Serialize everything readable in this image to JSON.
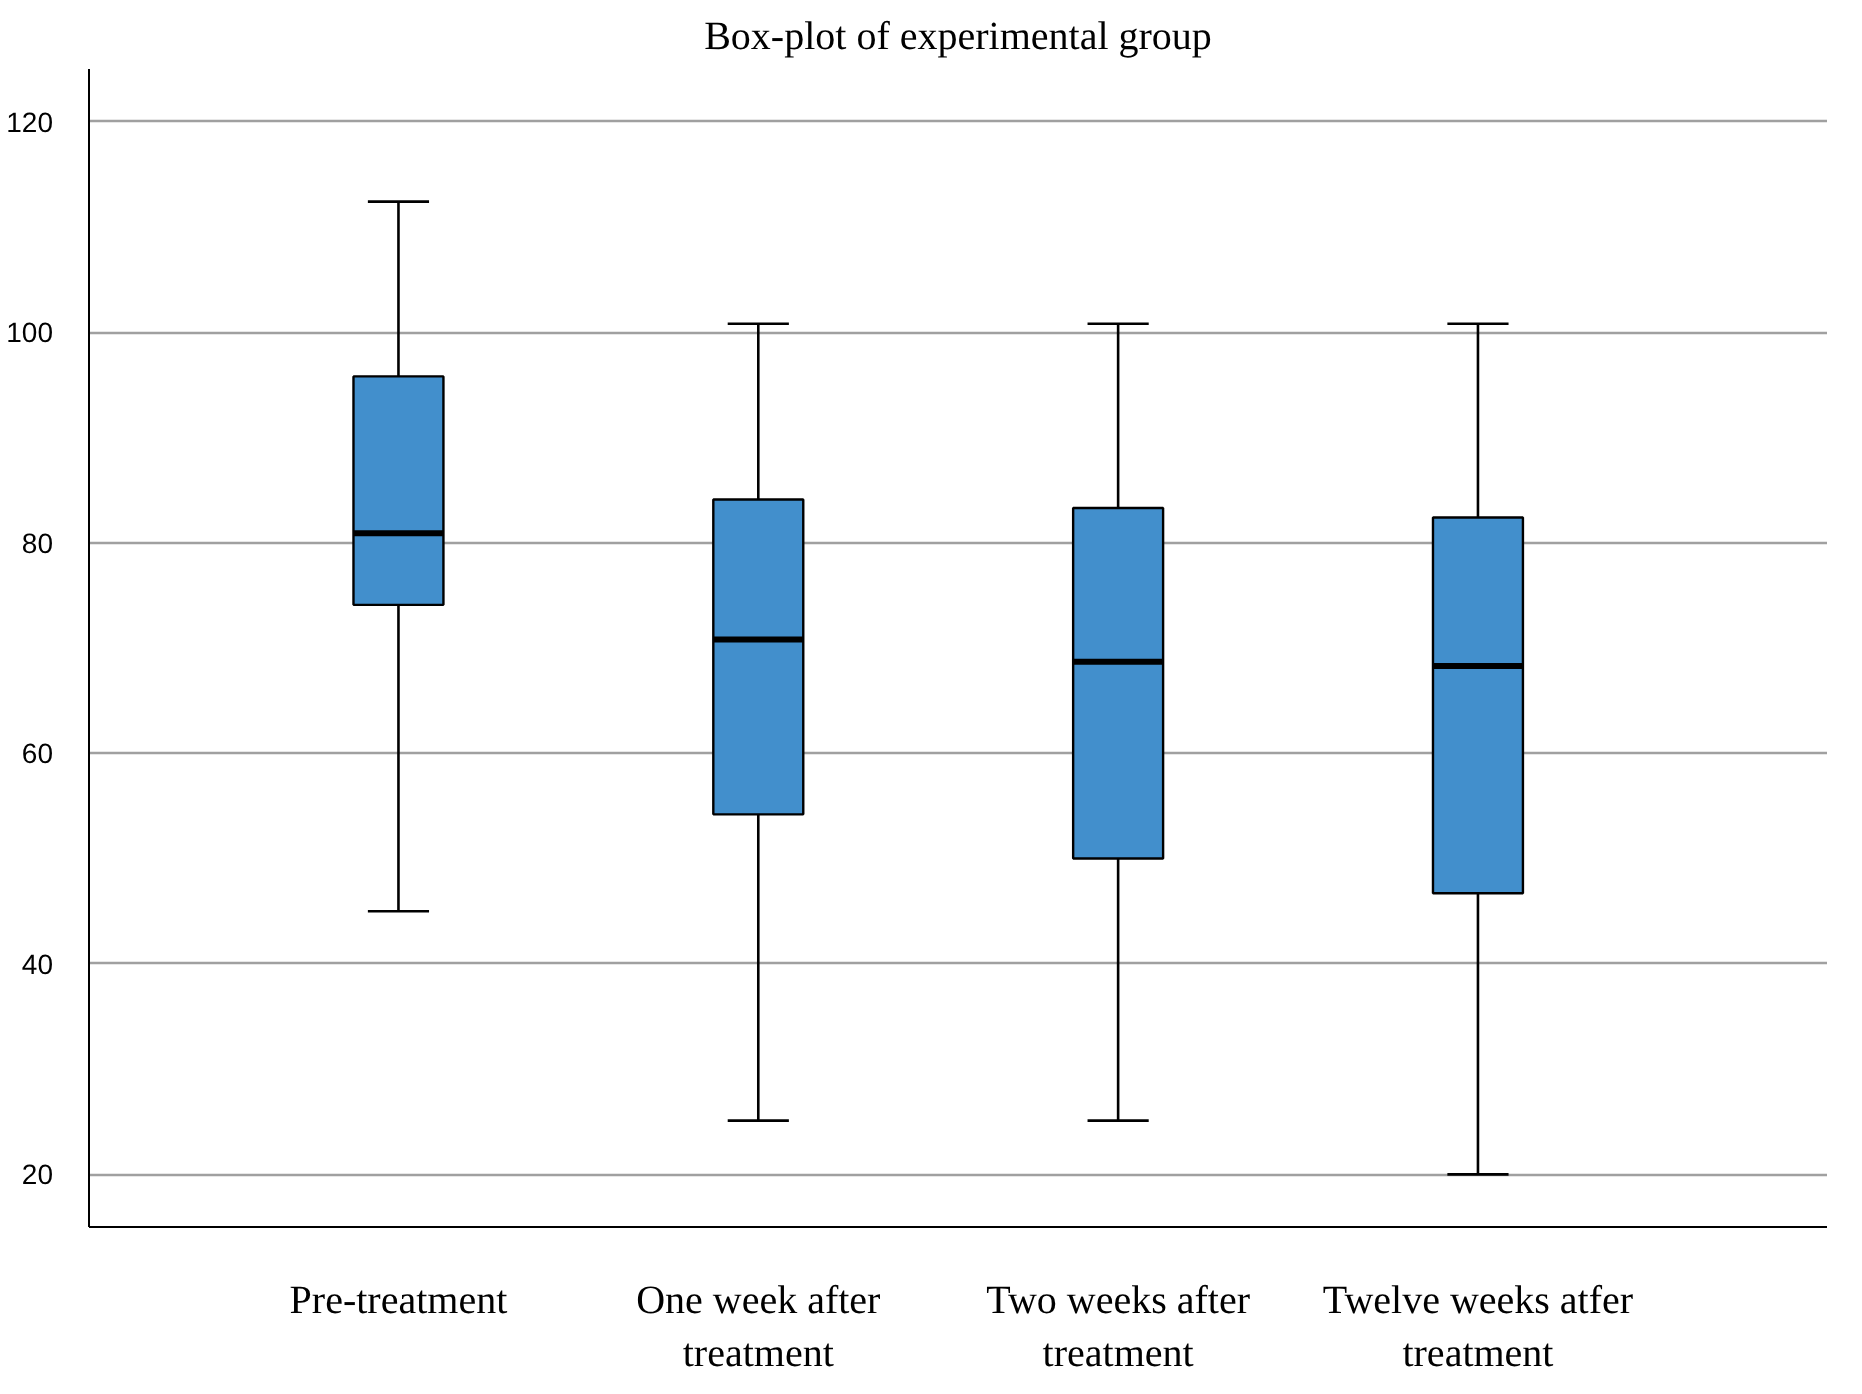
{
  "chart_data": {
    "type": "box",
    "title": "Box-plot of experimental group",
    "categories": [
      "Pre-treatment",
      "One week after treatment",
      "Two weeks after treatment",
      "Twelve weeks atfer treatment"
    ],
    "color": "#428fcc",
    "boxes": [
      {
        "low": 45.0,
        "q1": 74.1,
        "median": 80.9,
        "q3": 95.8,
        "high": 112.4
      },
      {
        "low": 25.1,
        "q1": 54.2,
        "median": 70.8,
        "q3": 84.1,
        "high": 100.8
      },
      {
        "low": 25.1,
        "q1": 50.0,
        "median": 68.7,
        "q3": 83.3,
        "high": 100.8
      },
      {
        "low": 20.0,
        "q1": 46.7,
        "median": 68.3,
        "q3": 82.4,
        "high": 100.8
      }
    ],
    "ylim": [
      15,
      125
    ],
    "yticks": [
      20,
      40,
      60,
      80,
      100,
      120
    ],
    "grid": "y"
  }
}
